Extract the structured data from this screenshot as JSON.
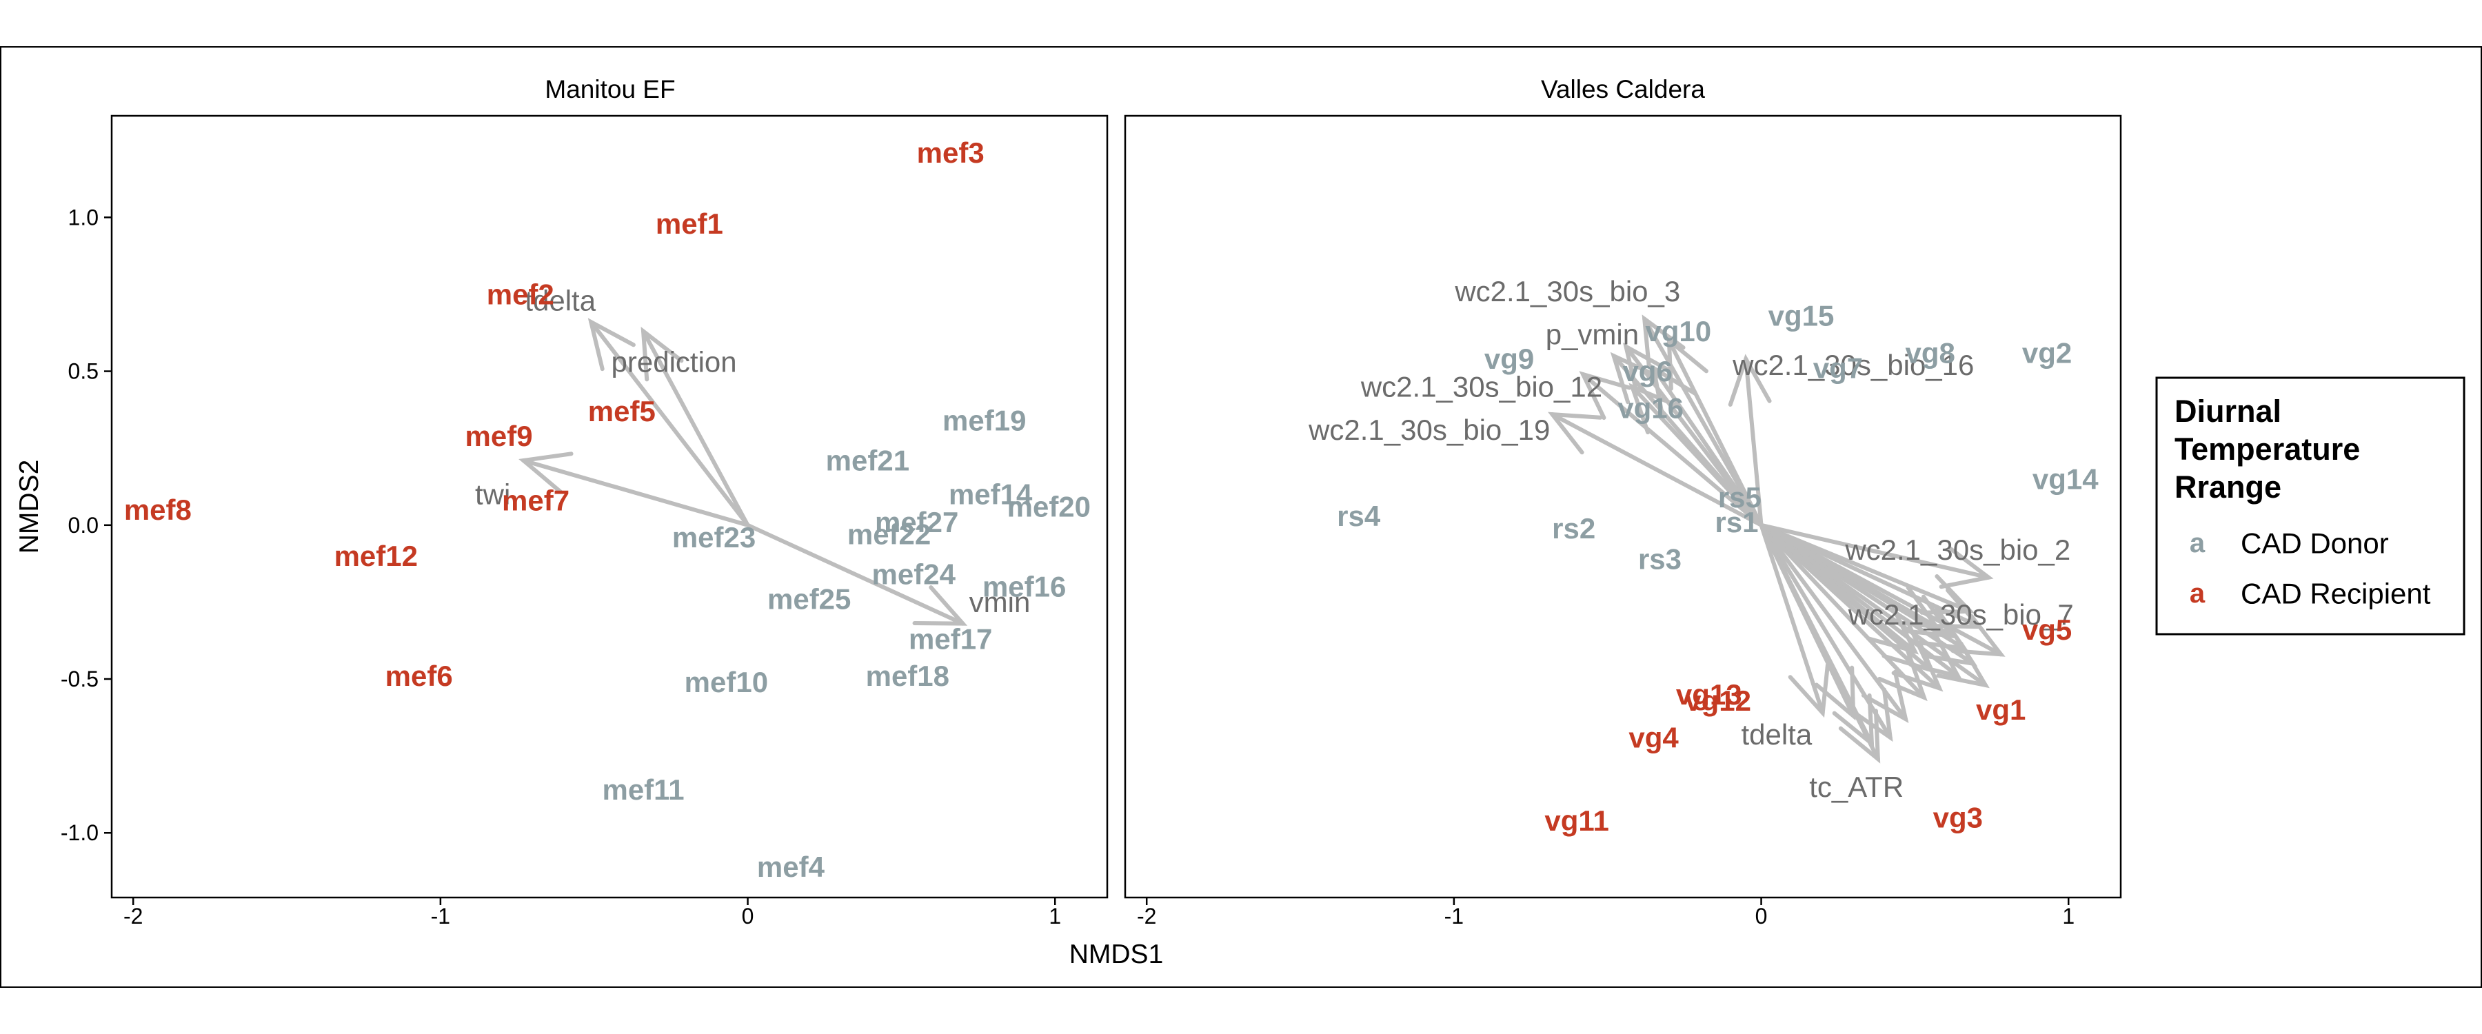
{
  "chart_data": {
    "type": "scatter",
    "xlabel": "NMDS1",
    "ylabel": "NMDS2",
    "xlim": [
      -2.07,
      1.17
    ],
    "ylim": [
      -1.21,
      1.33
    ],
    "x_ticks": [
      -2,
      -1,
      0,
      1
    ],
    "y_ticks": [
      1.0,
      0.5,
      0.0,
      -0.5,
      -1.0
    ],
    "x_tick_labels": [
      "-2",
      "-1",
      "0",
      "1"
    ],
    "y_tick_labels": [
      "1.0",
      "0.5",
      "0.0",
      "-0.5",
      "-1.0"
    ],
    "grid": false,
    "legend": {
      "title": "Diurnal\nTemperature\nRrange",
      "placement": "right",
      "key_glyph": "a",
      "entries": [
        {
          "label": "CAD Donor",
          "color": "#8d9ea3"
        },
        {
          "label": "CAD Recipient",
          "color": "#c53a22"
        }
      ]
    },
    "colors": {
      "donor": "#8d9ea3",
      "recipient": "#c53a22",
      "vector": "#bdbdbd",
      "vector_label": "#6b6b6b"
    },
    "panels": [
      {
        "title": "Manitou EF",
        "points": [
          {
            "label": "mef3",
            "x": 0.66,
            "y": 1.21,
            "group": "recipient"
          },
          {
            "label": "mef1",
            "x": -0.19,
            "y": 0.98,
            "group": "recipient"
          },
          {
            "label": "mef2",
            "x": -0.74,
            "y": 0.75,
            "group": "recipient"
          },
          {
            "label": "mef9",
            "x": -0.81,
            "y": 0.29,
            "group": "recipient"
          },
          {
            "label": "mef5",
            "x": -0.41,
            "y": 0.37,
            "group": "recipient"
          },
          {
            "label": "mef7",
            "x": -0.69,
            "y": 0.08,
            "group": "recipient"
          },
          {
            "label": "mef8",
            "x": -1.92,
            "y": 0.05,
            "group": "recipient"
          },
          {
            "label": "mef12",
            "x": -1.21,
            "y": -0.1,
            "group": "recipient"
          },
          {
            "label": "mef6",
            "x": -1.07,
            "y": -0.49,
            "group": "recipient"
          },
          {
            "label": "mef19",
            "x": 0.77,
            "y": 0.34,
            "group": "donor"
          },
          {
            "label": "mef21",
            "x": 0.39,
            "y": 0.21,
            "group": "donor"
          },
          {
            "label": "mef14",
            "x": 0.79,
            "y": 0.1,
            "group": "donor"
          },
          {
            "label": "mef20",
            "x": 0.98,
            "y": 0.06,
            "group": "donor"
          },
          {
            "label": "mef27",
            "x": 0.55,
            "y": 0.01,
            "group": "donor"
          },
          {
            "label": "mef22",
            "x": 0.46,
            "y": -0.03,
            "group": "donor"
          },
          {
            "label": "mef23",
            "x": -0.11,
            "y": -0.04,
            "group": "donor"
          },
          {
            "label": "mef24",
            "x": 0.54,
            "y": -0.16,
            "group": "donor"
          },
          {
            "label": "mef16",
            "x": 0.9,
            "y": -0.2,
            "group": "donor"
          },
          {
            "label": "mef25",
            "x": 0.2,
            "y": -0.24,
            "group": "donor"
          },
          {
            "label": "mef17",
            "x": 0.66,
            "y": -0.37,
            "group": "donor"
          },
          {
            "label": "mef18",
            "x": 0.52,
            "y": -0.49,
            "group": "donor"
          },
          {
            "label": "mef10",
            "x": -0.07,
            "y": -0.51,
            "group": "donor"
          },
          {
            "label": "mef11",
            "x": -0.34,
            "y": -0.86,
            "group": "donor"
          },
          {
            "label": "mef4",
            "x": 0.14,
            "y": -1.11,
            "group": "donor"
          }
        ],
        "vectors": [
          {
            "label": "tdelta",
            "x": -0.51,
            "y": 0.66,
            "label_x": -0.61,
            "label_y": 0.73
          },
          {
            "label": "prediction",
            "x": -0.34,
            "y": 0.63,
            "label_x": -0.24,
            "label_y": 0.53
          },
          {
            "label": "twi",
            "x": -0.73,
            "y": 0.21,
            "label_x": -0.83,
            "label_y": 0.1
          },
          {
            "label": "vmin",
            "x": 0.7,
            "y": -0.32,
            "label_x": 0.82,
            "label_y": -0.25
          }
        ]
      },
      {
        "title": "Valles Caldera",
        "points": [
          {
            "label": "vg15",
            "x": 0.13,
            "y": 0.68,
            "group": "donor"
          },
          {
            "label": "vg10",
            "x": -0.27,
            "y": 0.63,
            "group": "donor"
          },
          {
            "label": "vg9",
            "x": -0.82,
            "y": 0.54,
            "group": "donor"
          },
          {
            "label": "vg6",
            "x": -0.37,
            "y": 0.5,
            "group": "donor"
          },
          {
            "label": "vg7",
            "x": 0.25,
            "y": 0.51,
            "group": "donor"
          },
          {
            "label": "vg8",
            "x": 0.55,
            "y": 0.56,
            "group": "donor"
          },
          {
            "label": "vg2",
            "x": 0.93,
            "y": 0.56,
            "group": "donor"
          },
          {
            "label": "vg16",
            "x": -0.36,
            "y": 0.38,
            "group": "donor"
          },
          {
            "label": "vg14",
            "x": 0.99,
            "y": 0.15,
            "group": "donor"
          },
          {
            "label": "rs5",
            "x": -0.07,
            "y": 0.09,
            "group": "donor"
          },
          {
            "label": "rs4",
            "x": -1.31,
            "y": 0.03,
            "group": "donor"
          },
          {
            "label": "rs1",
            "x": -0.08,
            "y": 0.01,
            "group": "donor"
          },
          {
            "label": "rs2",
            "x": -0.61,
            "y": -0.01,
            "group": "donor"
          },
          {
            "label": "rs3",
            "x": -0.33,
            "y": -0.11,
            "group": "donor"
          },
          {
            "label": "vg5",
            "x": 0.93,
            "y": -0.34,
            "group": "recipient"
          },
          {
            "label": "vg13",
            "x": -0.17,
            "y": -0.55,
            "group": "recipient"
          },
          {
            "label": "vg12",
            "x": -0.14,
            "y": -0.57,
            "group": "recipient"
          },
          {
            "label": "vg1",
            "x": 0.78,
            "y": -0.6,
            "group": "recipient"
          },
          {
            "label": "vg4",
            "x": -0.35,
            "y": -0.69,
            "group": "recipient"
          },
          {
            "label": "vg11",
            "x": -0.6,
            "y": -0.96,
            "group": "recipient"
          },
          {
            "label": "vg3",
            "x": 0.64,
            "y": -0.95,
            "group": "recipient"
          }
        ],
        "vectors": [
          {
            "label": "wc2.1_30s_bio_3",
            "x": -0.38,
            "y": 0.67,
            "label_x": -0.63,
            "label_y": 0.76
          },
          {
            "label": "p_vmin",
            "x": -0.48,
            "y": 0.55,
            "label_x": -0.55,
            "label_y": 0.62
          },
          {
            "label": "wc2.1_30s_bio_16",
            "x": -0.05,
            "y": 0.54,
            "label_x": 0.3,
            "label_y": 0.52
          },
          {
            "label": "wc2.1_30s_bio_12",
            "x": -0.58,
            "y": 0.49,
            "label_x": -0.91,
            "label_y": 0.45
          },
          {
            "label": "wc2.1_30s_bio_19",
            "x": -0.68,
            "y": 0.36,
            "label_x": -1.08,
            "label_y": 0.31
          },
          {
            "label": "wc2.1_30s_bio_2",
            "x": 0.74,
            "y": -0.17,
            "label_x": 0.64,
            "label_y": -0.08
          },
          {
            "label": "wc2.1_30s_bio_7",
            "x": 0.71,
            "y": -0.33,
            "label_x": 0.65,
            "label_y": -0.29
          },
          {
            "label": "tdelta",
            "x": 0.2,
            "y": -0.61,
            "label_x": 0.05,
            "label_y": -0.68
          },
          {
            "label": "tc_ATR",
            "x": 0.38,
            "y": -0.76,
            "label_x": 0.31,
            "label_y": -0.85
          }
        ],
        "unlabeled_vector_tips": [
          [
            0.58,
            -0.53
          ],
          [
            0.64,
            -0.49
          ],
          [
            0.69,
            -0.45
          ],
          [
            0.73,
            -0.52
          ],
          [
            0.66,
            -0.4
          ],
          [
            0.53,
            -0.56
          ],
          [
            0.47,
            -0.63
          ],
          [
            0.42,
            -0.69
          ],
          [
            0.36,
            -0.71
          ],
          [
            0.62,
            -0.36
          ],
          [
            0.78,
            -0.42
          ],
          [
            0.55,
            -0.47
          ],
          [
            0.5,
            -0.41
          ],
          [
            -0.44,
            0.58
          ],
          [
            -0.42,
            0.45
          ],
          [
            -0.3,
            0.6
          ],
          [
            -0.35,
            0.51
          ],
          [
            0.3,
            -0.62
          ],
          [
            0.57,
            -0.33
          ],
          [
            0.68,
            -0.28
          ]
        ]
      }
    ]
  }
}
